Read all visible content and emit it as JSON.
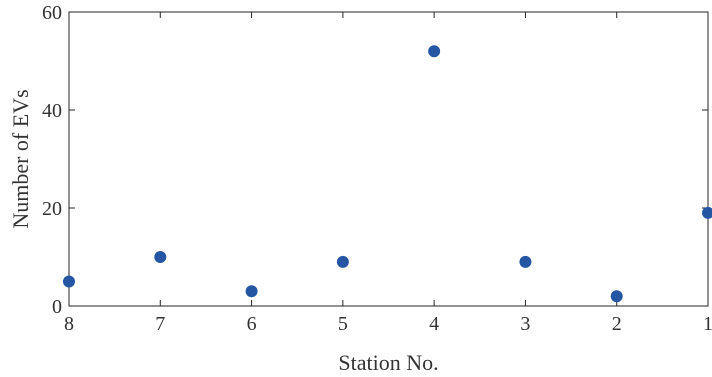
{
  "chart_data": {
    "type": "scatter",
    "title": "",
    "xlabel": "Station No.",
    "ylabel": "Number of EVs",
    "x_categories": [
      "8",
      "7",
      "6",
      "5",
      "4",
      "3",
      "2",
      "1"
    ],
    "y": [
      5,
      10,
      3,
      9,
      52,
      9,
      2,
      19
    ],
    "ylim": [
      0,
      60
    ],
    "yticks": [
      0,
      20,
      40,
      60
    ],
    "grid": false,
    "marker_color": "#2456a4"
  }
}
